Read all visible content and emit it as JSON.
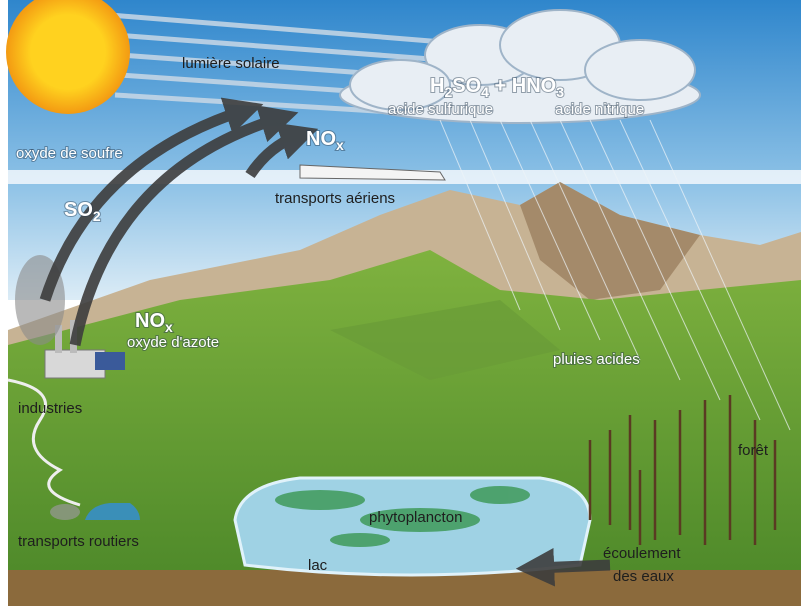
{
  "sky": {
    "sunlight": "lumière solaire",
    "formula": [
      {
        "text": "H"
      },
      {
        "text": "2",
        "sub": true
      },
      {
        "text": "SO"
      },
      {
        "text": "4",
        "sub": true
      },
      {
        "text": " + HNO"
      },
      {
        "text": "3",
        "sub": true
      }
    ],
    "acid_left": "acide sulfurique",
    "acid_right": "acide nitrique",
    "sulfur_oxide": "oxyde de soufre",
    "air_nox": [
      {
        "text": "NO"
      },
      {
        "text": "x",
        "sub": true
      }
    ],
    "air_transport": "transports aériens"
  },
  "land": {
    "so2": [
      {
        "text": "SO"
      },
      {
        "text": "2",
        "sub": true
      }
    ],
    "ground_nox": [
      {
        "text": "NO"
      },
      {
        "text": "x",
        "sub": true
      }
    ],
    "nitrogen_oxide": "oxyde d'azote",
    "industries": "industries",
    "acid_rain": "pluies acides",
    "forest": "forêt",
    "phytoplankton": "phytoplancton",
    "lake": "lac",
    "runoff": [
      "écoulement",
      "des eaux"
    ],
    "road_transport": "transports routiers"
  }
}
